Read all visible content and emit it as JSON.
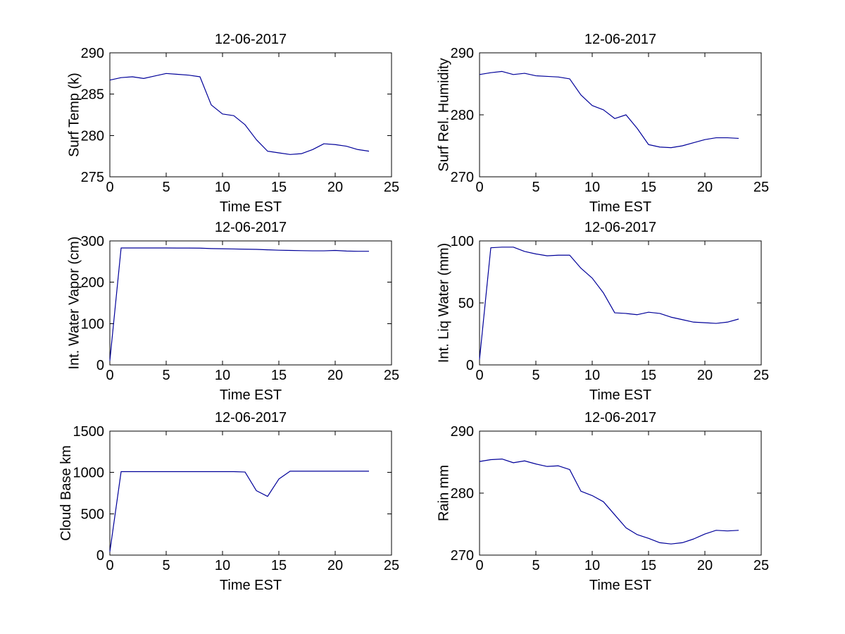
{
  "figure": {
    "background": "#ffffff",
    "axis_color": "#000000",
    "text_color": "#000000",
    "line_color": "#000099",
    "shared_title": "12-06-2017",
    "shared_xlabel": "Time EST"
  },
  "chart_data": [
    {
      "id": "surf-temp",
      "type": "line",
      "title": "12-06-2017",
      "xlabel": "Time EST",
      "ylabel": "Surf Temp (k)",
      "xlim": [
        0,
        25
      ],
      "ylim": [
        275,
        290
      ],
      "xticks": [
        0,
        5,
        10,
        15,
        20,
        25
      ],
      "yticks": [
        275,
        280,
        285,
        290
      ],
      "grid": false,
      "x": [
        0,
        1,
        2,
        3,
        4,
        5,
        6,
        7,
        8,
        9,
        10,
        11,
        12,
        13,
        14,
        15,
        16,
        17,
        18,
        19,
        20,
        21,
        22,
        23
      ],
      "y": [
        286.7,
        287.0,
        287.1,
        286.9,
        287.2,
        287.5,
        287.4,
        287.3,
        287.1,
        283.7,
        282.6,
        282.4,
        281.3,
        279.5,
        278.1,
        277.9,
        277.7,
        277.8,
        278.3,
        279.0,
        278.9,
        278.7,
        278.3,
        278.1
      ]
    },
    {
      "id": "surf-rel-humidity",
      "type": "line",
      "title": "12-06-2017",
      "xlabel": "Time EST",
      "ylabel": "Surf Rel. Humidity",
      "xlim": [
        0,
        25
      ],
      "ylim": [
        270,
        290
      ],
      "xticks": [
        0,
        5,
        10,
        15,
        20,
        25
      ],
      "yticks": [
        270,
        280,
        290
      ],
      "grid": false,
      "x": [
        0,
        1,
        2,
        3,
        4,
        5,
        6,
        7,
        8,
        9,
        10,
        11,
        12,
        13,
        14,
        15,
        16,
        17,
        18,
        19,
        20,
        21,
        22,
        23
      ],
      "y": [
        286.5,
        286.8,
        287.0,
        286.5,
        286.7,
        286.3,
        286.2,
        286.1,
        285.8,
        283.2,
        281.5,
        280.8,
        279.4,
        280.0,
        277.8,
        275.2,
        274.8,
        274.7,
        275.0,
        275.5,
        276.0,
        276.3,
        276.3,
        276.2
      ]
    },
    {
      "id": "int-water-vapor",
      "type": "line",
      "title": "12-06-2017",
      "xlabel": "Time EST",
      "ylabel": "Int. Water Vapor (cm)",
      "xlim": [
        0,
        25
      ],
      "ylim": [
        0,
        300
      ],
      "xticks": [
        0,
        5,
        10,
        15,
        20,
        25
      ],
      "yticks": [
        0,
        100,
        200,
        300
      ],
      "grid": false,
      "x": [
        0,
        1,
        2,
        3,
        4,
        5,
        6,
        7,
        8,
        9,
        10,
        11,
        12,
        13,
        14,
        15,
        16,
        17,
        18,
        19,
        20,
        21,
        22,
        23
      ],
      "y": [
        10,
        283,
        283,
        283,
        283,
        283,
        282.8,
        282.8,
        282.5,
        281.5,
        281,
        280.5,
        280,
        279.5,
        278.5,
        277.5,
        277,
        276.5,
        276,
        276,
        277,
        275.5,
        275,
        275
      ]
    },
    {
      "id": "int-liq-water",
      "type": "line",
      "title": "12-06-2017",
      "xlabel": "Time EST",
      "ylabel": "Int. Liq Water (mm)",
      "xlim": [
        0,
        25
      ],
      "ylim": [
        0,
        100
      ],
      "xticks": [
        0,
        5,
        10,
        15,
        20,
        25
      ],
      "yticks": [
        0,
        50,
        100
      ],
      "grid": false,
      "x": [
        0,
        1,
        2,
        3,
        4,
        5,
        6,
        7,
        8,
        9,
        10,
        11,
        12,
        13,
        14,
        15,
        16,
        17,
        18,
        19,
        20,
        21,
        22,
        23
      ],
      "y": [
        4.5,
        94.5,
        95,
        95,
        91.5,
        89.5,
        88,
        88.5,
        88.5,
        78,
        70,
        58,
        42,
        41.5,
        40.5,
        42.5,
        41.5,
        38.5,
        36.5,
        34.5,
        34,
        33.5,
        34.5,
        37
      ]
    },
    {
      "id": "cloud-base",
      "type": "line",
      "title": "12-06-2017",
      "xlabel": "Time EST",
      "ylabel": "Cloud Base km",
      "xlim": [
        0,
        25
      ],
      "ylim": [
        0,
        1500
      ],
      "xticks": [
        0,
        5,
        10,
        15,
        20,
        25
      ],
      "yticks": [
        0,
        500,
        1000,
        1500
      ],
      "grid": false,
      "x": [
        0,
        1,
        2,
        3,
        4,
        5,
        6,
        7,
        8,
        9,
        10,
        11,
        12,
        13,
        14,
        15,
        16,
        17,
        18,
        19,
        20,
        21,
        22,
        23
      ],
      "y": [
        40,
        1010,
        1010,
        1010,
        1010,
        1010,
        1010,
        1010,
        1010,
        1010,
        1010,
        1010,
        1005,
        780,
        710,
        920,
        1015,
        1015,
        1015,
        1015,
        1015,
        1015,
        1015,
        1015
      ]
    },
    {
      "id": "rain",
      "type": "line",
      "title": "12-06-2017",
      "xlabel": "Time EST",
      "ylabel": "Rain mm",
      "xlim": [
        0,
        25
      ],
      "ylim": [
        270,
        290
      ],
      "xticks": [
        0,
        5,
        10,
        15,
        20,
        25
      ],
      "yticks": [
        270,
        280,
        290
      ],
      "grid": false,
      "x": [
        0,
        1,
        2,
        3,
        4,
        5,
        6,
        7,
        8,
        9,
        10,
        11,
        12,
        13,
        14,
        15,
        16,
        17,
        18,
        19,
        20,
        21,
        22,
        23
      ],
      "y": [
        285.1,
        285.4,
        285.5,
        284.9,
        285.2,
        284.7,
        284.3,
        284.4,
        283.8,
        280.3,
        279.6,
        278.6,
        276.5,
        274.4,
        273.3,
        272.7,
        272.0,
        271.8,
        272.0,
        272.6,
        273.4,
        274.0,
        273.9,
        274.0
      ]
    }
  ]
}
